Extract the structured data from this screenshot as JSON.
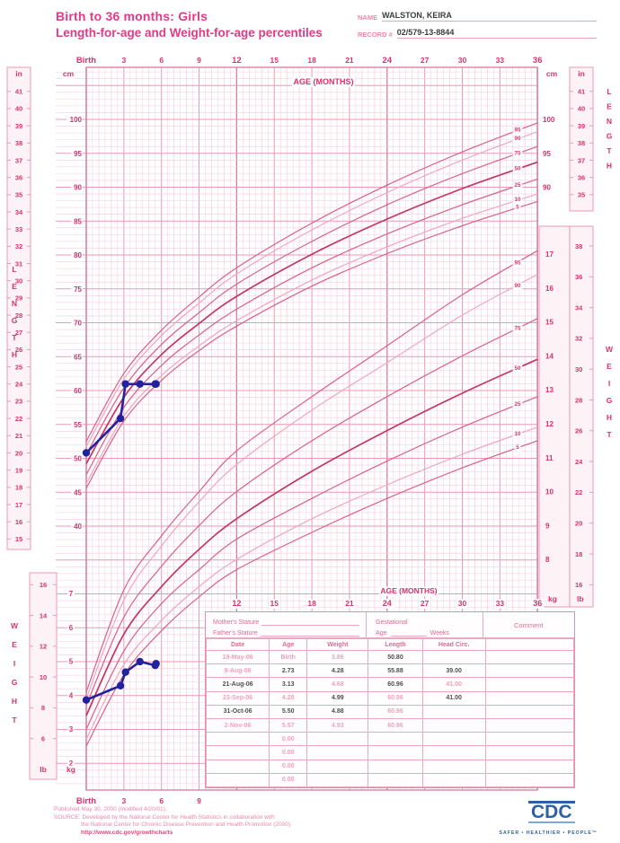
{
  "header": {
    "title_line1": "Birth to 36 months: Girls",
    "title_line2": "Length-for-age and Weight-for-age percentiles",
    "name_label": "NAME",
    "name_value": "WALSTON, KEIRA",
    "record_label": "RECORD #",
    "record_value": "02/579-13-8844"
  },
  "chart_data": {
    "type": "line",
    "title": "Length-for-age and Weight-for-age percentiles, girls, birth to 36 months",
    "x_axis": {
      "label": "AGE (MONTHS)",
      "tick_labels": [
        "Birth",
        "3",
        "6",
        "9",
        "12",
        "15",
        "18",
        "21",
        "24",
        "27",
        "30",
        "33",
        "36"
      ],
      "tick_months": [
        0,
        3,
        6,
        9,
        12,
        15,
        18,
        21,
        24,
        27,
        30,
        33,
        36
      ],
      "bold_ticks": [
        0,
        12,
        24,
        36
      ],
      "bottom_tick_labels": [
        "Birth",
        "3",
        "6",
        "9"
      ],
      "bottom_tick_months": [
        0,
        3,
        6,
        9
      ],
      "mid_tick_months": [
        12,
        15,
        18,
        21,
        24,
        27,
        30,
        33,
        36
      ],
      "range_months": [
        0,
        36
      ]
    },
    "length_axis": {
      "label": "LENGTH",
      "cm_label": "cm",
      "in_label": "in",
      "left_cm_ticks": [
        40,
        45,
        50,
        55,
        60,
        65,
        70,
        75,
        80,
        85,
        90,
        95,
        100
      ],
      "left_in_ticks": [
        15,
        16,
        17,
        18,
        19,
        20,
        21,
        22,
        23,
        24,
        25,
        26,
        27,
        28,
        29,
        30,
        31,
        32,
        33,
        34,
        35,
        36,
        37,
        38,
        39,
        40,
        41
      ],
      "right_cm_ticks": [
        90,
        95,
        100
      ],
      "right_in_ticks": [
        35,
        36,
        37,
        38,
        39,
        40,
        41
      ]
    },
    "weight_axis": {
      "label": "WEIGHT",
      "kg_label": "kg",
      "lb_label": "lb",
      "left_kg_ticks": [
        2,
        3,
        4,
        5,
        6,
        7
      ],
      "left_lb_ticks": [
        6,
        8,
        10,
        12,
        14,
        16
      ],
      "right_kg_ticks": [
        8,
        9,
        10,
        11,
        12,
        13,
        14,
        15,
        16,
        17
      ],
      "right_lb_ticks": [
        16,
        18,
        20,
        22,
        24,
        26,
        28,
        30,
        32,
        34,
        36,
        38
      ]
    },
    "percentiles": [
      5,
      10,
      25,
      50,
      75,
      90,
      95
    ],
    "curve_months": [
      0,
      3,
      6,
      9,
      12,
      18,
      24,
      30,
      36
    ],
    "length_percentiles_cm": {
      "5": [
        45.6,
        55.5,
        61.5,
        65.9,
        69.5,
        75.4,
        80.2,
        84.3,
        87.9
      ],
      "10": [
        46.3,
        56.2,
        62.2,
        66.6,
        70.3,
        76.3,
        81.2,
        85.4,
        89.0
      ],
      "25": [
        47.6,
        57.5,
        63.7,
        68.2,
        72.0,
        78.1,
        83.1,
        87.4,
        91.2
      ],
      "50": [
        49.2,
        59.0,
        65.3,
        69.9,
        73.9,
        80.1,
        85.3,
        89.8,
        93.7
      ],
      "75": [
        50.6,
        60.4,
        66.8,
        71.5,
        75.7,
        82.0,
        87.4,
        92.0,
        96.0
      ],
      "90": [
        51.7,
        61.7,
        68.1,
        72.9,
        77.2,
        83.7,
        89.2,
        94.0,
        98.2
      ],
      "95": [
        52.5,
        62.5,
        68.9,
        73.8,
        78.1,
        84.7,
        90.3,
        95.2,
        99.5
      ]
    },
    "weight_percentiles_kg": {
      "5": [
        2.5,
        4.6,
        5.9,
        6.9,
        7.7,
        8.8,
        9.8,
        10.7,
        11.5
      ],
      "10": [
        2.7,
        4.9,
        6.2,
        7.2,
        8.0,
        9.2,
        10.2,
        11.1,
        11.9
      ],
      "25": [
        3.0,
        5.3,
        6.7,
        7.7,
        8.6,
        9.8,
        10.9,
        11.9,
        12.8
      ],
      "50": [
        3.4,
        5.8,
        7.2,
        8.3,
        9.2,
        10.6,
        11.8,
        12.9,
        13.9
      ],
      "75": [
        3.7,
        6.3,
        7.8,
        9.0,
        10.0,
        11.5,
        12.8,
        14.0,
        15.1
      ],
      "90": [
        3.9,
        6.8,
        8.4,
        9.7,
        10.8,
        12.4,
        13.8,
        15.2,
        16.4
      ],
      "95": [
        4.1,
        7.1,
        8.7,
        10.0,
        11.2,
        12.8,
        14.3,
        15.8,
        17.1
      ]
    },
    "patient_series": {
      "length": {
        "months": [
          0,
          2.73,
          3.13,
          4.28,
          5.5,
          5.57
        ],
        "cm": [
          50.8,
          55.88,
          60.96,
          60.96,
          60.96,
          60.96
        ]
      },
      "weight": {
        "months": [
          0,
          2.73,
          3.13,
          4.28,
          5.5,
          5.57
        ],
        "kg": [
          3.86,
          4.28,
          4.68,
          4.99,
          4.88,
          4.93
        ]
      }
    },
    "colors": {
      "accent": "#d6336c",
      "grid_minor": "#f7ccd7",
      "grid_mid": "#ec9ab1",
      "grid_strong": "#d87a97",
      "curve_light": "#f0a6be",
      "curve_mid": "#d8608a",
      "curve_dark": "#c03865",
      "patient": "#22229e",
      "box_fill": "#fdf2f5"
    },
    "legend_position": "curve-ends",
    "grid": true
  },
  "info_panel": {
    "mothers_stature_label": "Mother's Stature",
    "fathers_stature_label": "Father's Stature",
    "gestational_label": "Gestational",
    "age_label": "Age",
    "weeks_label": "Weeks",
    "comment_label": "Comment",
    "columns": [
      "Date",
      "Age",
      "Weight",
      "Length",
      "Head Circ."
    ],
    "rows": [
      {
        "values": [
          "19-May-06",
          "Birth",
          "3.86",
          "50.80",
          "",
          ""
        ],
        "tones": [
          "light",
          "light",
          "light",
          "dark",
          "",
          ""
        ]
      },
      {
        "values": [
          "9-Aug-06",
          "2.73",
          "4.28",
          "55.88",
          "39.00",
          ""
        ],
        "tones": [
          "light",
          "dark",
          "dark",
          "dark",
          "dark",
          ""
        ]
      },
      {
        "values": [
          "21-Aug-06",
          "3.13",
          "4.68",
          "60.96",
          "41.00",
          ""
        ],
        "tones": [
          "dark",
          "dark",
          "light",
          "dark",
          "light",
          ""
        ]
      },
      {
        "values": [
          "23-Sep-06",
          "4.28",
          "4.99",
          "60.96",
          "41.00",
          ""
        ],
        "tones": [
          "light",
          "light",
          "dark",
          "light",
          "dark",
          ""
        ]
      },
      {
        "values": [
          "31-Oct-06",
          "5.50",
          "4.88",
          "60.96",
          "",
          ""
        ],
        "tones": [
          "dark",
          "dark",
          "dark",
          "light",
          "",
          ""
        ]
      },
      {
        "values": [
          "2-Nov-06",
          "5.57",
          "4.93",
          "60.96",
          "",
          ""
        ],
        "tones": [
          "light",
          "light",
          "light",
          "light",
          "",
          ""
        ]
      },
      {
        "values": [
          "",
          "0.00",
          "",
          "",
          "",
          ""
        ],
        "tones": [
          "",
          "light",
          "",
          "",
          "",
          ""
        ]
      },
      {
        "values": [
          "",
          "0.00",
          "",
          "",
          "",
          ""
        ],
        "tones": [
          "",
          "light",
          "",
          "",
          "",
          ""
        ]
      },
      {
        "values": [
          "",
          "0.00",
          "",
          "",
          "",
          ""
        ],
        "tones": [
          "",
          "light",
          "",
          "",
          "",
          ""
        ]
      },
      {
        "values": [
          "",
          "0.00",
          "",
          "",
          "",
          ""
        ],
        "tones": [
          "",
          "light",
          "",
          "",
          "",
          ""
        ]
      }
    ]
  },
  "footer": {
    "published": "Published May 30, 2000 (modified 4/20/01).",
    "source_label": "SOURCE:",
    "source_line1": "Developed by the National Center for Health Statistics in collaboration with",
    "source_line2": "the National Center for Chronic Disease Prevention and Health Promotion (2000).",
    "url": "http://www.cdc.gov/growthcharts",
    "cdc_logo": "CDC",
    "cdc_tagline": "SAFER • HEALTHIER • PEOPLE™"
  }
}
